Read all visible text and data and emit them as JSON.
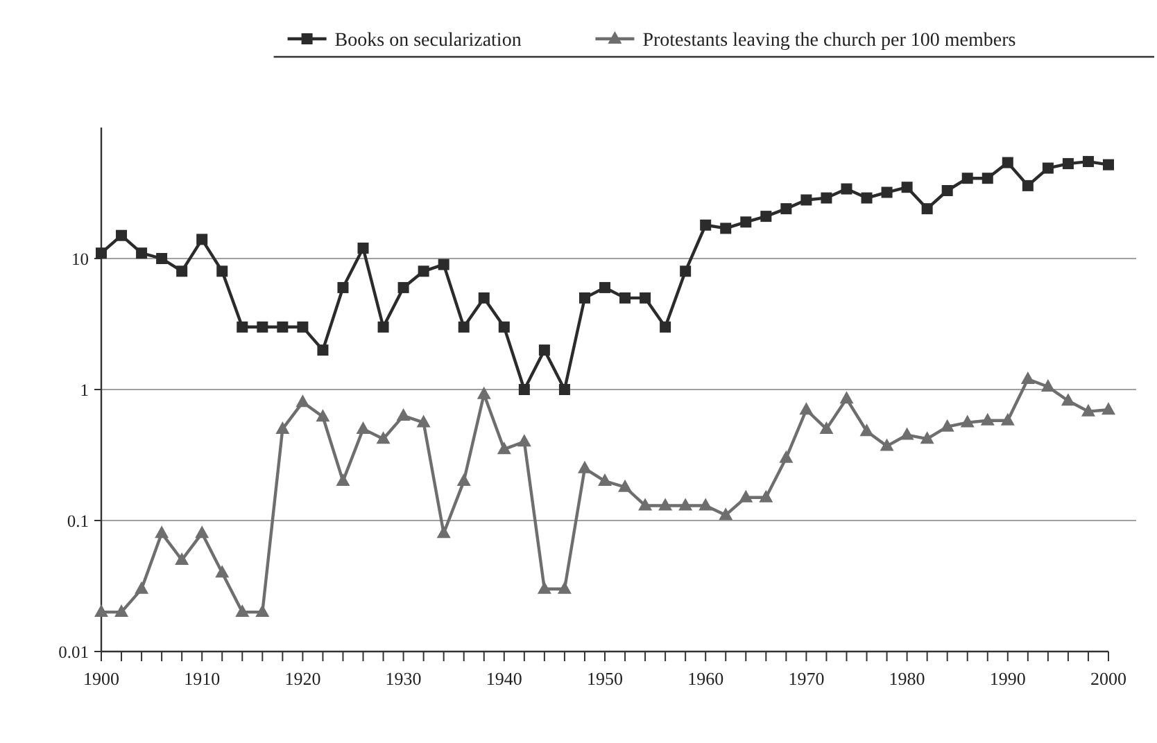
{
  "chart_data": {
    "type": "line",
    "log": "y",
    "grid": "y",
    "legend": "top right",
    "line_style": "solid",
    "x": [
      1900,
      1902,
      1904,
      1906,
      1908,
      1910,
      1912,
      1914,
      1916,
      1918,
      1920,
      1922,
      1924,
      1926,
      1928,
      1930,
      1932,
      1934,
      1936,
      1938,
      1940,
      1942,
      1944,
      1946,
      1948,
      1950,
      1952,
      1954,
      1956,
      1958,
      1960,
      1962,
      1964,
      1966,
      1968,
      1970,
      1972,
      1974,
      1976,
      1978,
      1980,
      1982,
      1984,
      1986,
      1988,
      1990,
      1992,
      1994,
      1996,
      1998,
      2000
    ],
    "xlim": [
      1900,
      2000
    ],
    "xticks": [
      1900,
      {
        "value": 1902,
        "label": null
      },
      {
        "value": 1904,
        "label": null
      },
      {
        "value": 1906,
        "label": null
      },
      {
        "value": 1908,
        "label": null
      },
      1910,
      {
        "value": 1912,
        "label": null
      },
      {
        "value": 1914,
        "label": null
      },
      {
        "value": 1916,
        "label": null
      },
      {
        "value": 1918,
        "label": null
      },
      1920,
      {
        "value": 1922,
        "label": null
      },
      {
        "value": 1924,
        "label": null
      },
      {
        "value": 1926,
        "label": null
      },
      {
        "value": 1928,
        "label": null
      },
      1930,
      {
        "value": 1932,
        "label": null
      },
      {
        "value": 1934,
        "label": null
      },
      {
        "value": 1936,
        "label": null
      },
      {
        "value": 1938,
        "label": null
      },
      1940,
      {
        "value": 1942,
        "label": null
      },
      {
        "value": 1944,
        "label": null
      },
      {
        "value": 1946,
        "label": null
      },
      {
        "value": 1948,
        "label": null
      },
      1950,
      {
        "value": 1952,
        "label": null
      },
      {
        "value": 1954,
        "label": null
      },
      {
        "value": 1956,
        "label": null
      },
      {
        "value": 1958,
        "label": null
      },
      1960,
      {
        "value": 1962,
        "label": null
      },
      {
        "value": 1964,
        "label": null
      },
      {
        "value": 1966,
        "label": null
      },
      {
        "value": 1968,
        "label": null
      },
      1970,
      {
        "value": 1972,
        "label": null
      },
      {
        "value": 1974,
        "label": null
      },
      {
        "value": 1976,
        "label": null
      },
      {
        "value": 1978,
        "label": null
      },
      1980,
      {
        "value": 1982,
        "label": null
      },
      {
        "value": 1984,
        "label": null
      },
      {
        "value": 1986,
        "label": null
      },
      {
        "value": 1988,
        "label": null
      },
      1990,
      {
        "value": 1992,
        "label": null
      },
      {
        "value": 1994,
        "label": null
      },
      {
        "value": 1996,
        "label": null
      },
      {
        "value": 1998,
        "label": null
      },
      2000
    ],
    "ylim": [
      0.01,
      100
    ],
    "yticks": [
      0.01,
      0.1,
      1,
      10
    ],
    "series": [
      {
        "name": "Books on secularization",
        "color": "#2b2b2b",
        "marker": "square",
        "values": [
          11,
          15,
          11,
          10,
          8,
          14,
          8,
          3,
          3,
          3,
          3,
          2,
          6,
          12,
          3,
          6,
          8,
          9,
          3,
          5,
          3,
          1,
          2,
          1,
          5,
          6,
          5,
          5,
          3,
          8,
          18,
          17,
          19,
          21,
          24,
          28,
          29,
          34,
          29,
          32,
          35,
          24,
          33,
          41,
          41,
          54,
          36,
          49,
          53,
          55,
          52
        ]
      },
      {
        "name": "Protestants leaving the church per 100 members",
        "color": "#6e6e6e",
        "marker": "triangle",
        "values": [
          0.02,
          0.02,
          0.03,
          0.08,
          0.05,
          0.08,
          0.04,
          0.02,
          0.02,
          0.5,
          0.8,
          0.62,
          0.2,
          0.5,
          0.42,
          0.63,
          0.56,
          0.08,
          0.2,
          0.92,
          0.35,
          0.4,
          0.03,
          0.03,
          0.25,
          0.2,
          0.18,
          0.13,
          0.13,
          0.13,
          0.13,
          0.11,
          0.15,
          0.15,
          0.3,
          0.7,
          0.5,
          0.85,
          0.48,
          0.37,
          0.45,
          0.42,
          0.52,
          0.56,
          0.58,
          0.58,
          1.2,
          1.05,
          0.82,
          0.68,
          0.7
        ]
      }
    ]
  }
}
